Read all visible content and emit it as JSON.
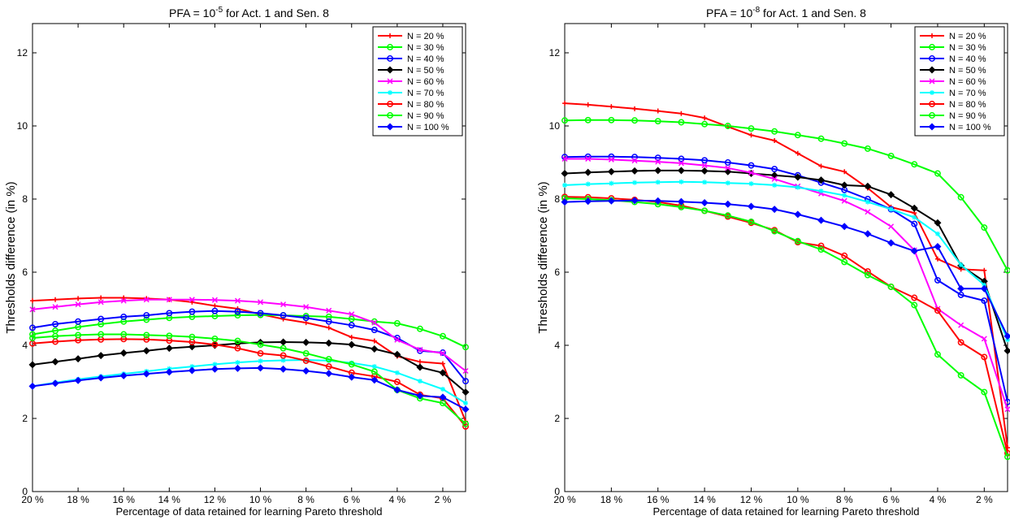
{
  "chart_data": [
    {
      "type": "line",
      "title_main": "PFA = 10",
      "title_exp": "-5",
      "title_rest": " for Act. 1 and Sen. 8",
      "xlabel": "Percentage of data retained for learning Pareto threshold",
      "ylabel": "Thresholds difference (in %)",
      "xlim": [
        20,
        1
      ],
      "ylim": [
        0,
        12.8
      ],
      "xticks": [
        "20 %",
        "18 %",
        "16 %",
        "14 %",
        "12 %",
        "10 %",
        "8 %",
        "6 %",
        "4 %",
        "2 %"
      ],
      "yticks": [
        "0",
        "2",
        "4",
        "6",
        "8",
        "10",
        "12"
      ],
      "grid": false,
      "legend_position": "top-right",
      "x": [
        20,
        19,
        18,
        17,
        16,
        15,
        14,
        13,
        12,
        11,
        10,
        9,
        8,
        7,
        6,
        5,
        4,
        3,
        2,
        1
      ],
      "series": [
        {
          "name": "N = 20 %",
          "color": "#ff0000",
          "marker": "plus",
          "values": [
            5.22,
            5.25,
            5.28,
            5.3,
            5.3,
            5.28,
            5.25,
            5.18,
            5.08,
            5.0,
            4.85,
            4.72,
            4.62,
            4.48,
            4.22,
            4.12,
            3.7,
            3.55,
            3.5,
            1.92
          ]
        },
        {
          "name": "N = 30 %",
          "color": "#00ff00",
          "marker": "circle",
          "values": [
            4.3,
            4.4,
            4.5,
            4.58,
            4.65,
            4.7,
            4.75,
            4.78,
            4.8,
            4.82,
            4.83,
            4.82,
            4.8,
            4.78,
            4.72,
            4.65,
            4.6,
            4.45,
            4.25,
            3.95
          ]
        },
        {
          "name": "N = 40 %",
          "color": "#0000ff",
          "marker": "circle",
          "values": [
            4.48,
            4.58,
            4.65,
            4.72,
            4.78,
            4.82,
            4.88,
            4.92,
            4.94,
            4.92,
            4.88,
            4.82,
            4.75,
            4.65,
            4.55,
            4.42,
            4.2,
            3.85,
            3.8,
            3.02
          ]
        },
        {
          "name": "N = 50 %",
          "color": "#000000",
          "marker": "diamond",
          "values": [
            3.47,
            3.55,
            3.63,
            3.72,
            3.79,
            3.85,
            3.92,
            3.96,
            4.0,
            4.05,
            4.08,
            4.09,
            4.08,
            4.06,
            4.02,
            3.9,
            3.75,
            3.4,
            3.25,
            2.72
          ]
        },
        {
          "name": "N = 60 %",
          "color": "#ff00ff",
          "marker": "x",
          "values": [
            4.98,
            5.05,
            5.12,
            5.18,
            5.22,
            5.25,
            5.25,
            5.25,
            5.24,
            5.22,
            5.18,
            5.12,
            5.05,
            4.95,
            4.85,
            4.62,
            4.15,
            3.88,
            3.78,
            3.3
          ]
        },
        {
          "name": "N = 70 %",
          "color": "#00ffff",
          "marker": "star",
          "values": [
            2.88,
            2.98,
            3.07,
            3.15,
            3.22,
            3.29,
            3.36,
            3.42,
            3.48,
            3.53,
            3.57,
            3.59,
            3.6,
            3.58,
            3.52,
            3.42,
            3.25,
            3.02,
            2.8,
            2.42
          ]
        },
        {
          "name": "N = 80 %",
          "color": "#ff0000",
          "marker": "circle",
          "values": [
            4.05,
            4.1,
            4.14,
            4.16,
            4.17,
            4.16,
            4.13,
            4.09,
            4.02,
            3.92,
            3.78,
            3.72,
            3.58,
            3.42,
            3.25,
            3.15,
            3.0,
            2.65,
            2.55,
            1.78
          ]
        },
        {
          "name": "N = 90 %",
          "color": "#00ff00",
          "marker": "circle",
          "values": [
            4.2,
            4.25,
            4.28,
            4.3,
            4.3,
            4.28,
            4.26,
            4.23,
            4.18,
            4.12,
            4.02,
            3.92,
            3.78,
            3.62,
            3.48,
            3.28,
            2.78,
            2.55,
            2.42,
            1.85
          ]
        },
        {
          "name": "N = 100 %",
          "color": "#0000ff",
          "marker": "diamond",
          "values": [
            2.88,
            2.96,
            3.04,
            3.11,
            3.17,
            3.22,
            3.27,
            3.31,
            3.35,
            3.37,
            3.38,
            3.35,
            3.3,
            3.23,
            3.13,
            3.05,
            2.78,
            2.62,
            2.58,
            2.25
          ]
        }
      ]
    },
    {
      "type": "line",
      "title_main": "PFA = 10",
      "title_exp": "-8",
      "title_rest": " for Act. 1 and Sen. 8",
      "xlabel": "Percentage of data retained for learning Pareto threshold",
      "ylabel": "Thresholds difference (in %)",
      "xlim": [
        20,
        1
      ],
      "ylim": [
        0,
        12.8
      ],
      "xticks": [
        "20 %",
        "18 %",
        "16 %",
        "14 %",
        "12 %",
        "10 %",
        "8 %",
        "6 %",
        "4 %",
        "2 %"
      ],
      "yticks": [
        "0",
        "2",
        "4",
        "6",
        "8",
        "10",
        "12"
      ],
      "grid": false,
      "legend_position": "top-right",
      "x": [
        20,
        19,
        18,
        17,
        16,
        15,
        14,
        13,
        12,
        11,
        10,
        9,
        8,
        7,
        6,
        5,
        4,
        3,
        2,
        1
      ],
      "series": [
        {
          "name": "N = 20 %",
          "color": "#ff0000",
          "marker": "plus",
          "values": [
            10.62,
            10.58,
            10.53,
            10.47,
            10.41,
            10.34,
            10.22,
            9.98,
            9.75,
            9.6,
            9.25,
            8.9,
            8.75,
            8.3,
            7.78,
            7.62,
            6.36,
            6.08,
            6.05,
            1.2
          ]
        },
        {
          "name": "N = 30 %",
          "color": "#00ff00",
          "marker": "circle",
          "values": [
            10.15,
            10.16,
            10.16,
            10.15,
            10.13,
            10.1,
            10.05,
            10.0,
            9.93,
            9.85,
            9.75,
            9.65,
            9.52,
            9.38,
            9.18,
            8.95,
            8.7,
            8.05,
            7.22,
            6.05
          ]
        },
        {
          "name": "N = 40 %",
          "color": "#0000ff",
          "marker": "circle",
          "values": [
            9.15,
            9.16,
            9.16,
            9.15,
            9.13,
            9.1,
            9.06,
            9.0,
            8.92,
            8.82,
            8.65,
            8.45,
            8.25,
            8.0,
            7.72,
            7.32,
            5.78,
            5.38,
            5.22,
            2.45
          ]
        },
        {
          "name": "N = 50 %",
          "color": "#000000",
          "marker": "diamond",
          "values": [
            8.7,
            8.73,
            8.75,
            8.77,
            8.78,
            8.78,
            8.77,
            8.75,
            8.7,
            8.65,
            8.6,
            8.52,
            8.38,
            8.35,
            8.12,
            7.75,
            7.35,
            6.18,
            5.75,
            3.85
          ]
        },
        {
          "name": "N = 60 %",
          "color": "#ff00ff",
          "marker": "x",
          "values": [
            9.1,
            9.1,
            9.08,
            9.05,
            9.02,
            8.98,
            8.92,
            8.85,
            8.72,
            8.55,
            8.35,
            8.15,
            7.95,
            7.65,
            7.25,
            6.6,
            5.0,
            4.55,
            4.18,
            2.25
          ]
        },
        {
          "name": "N = 70 %",
          "color": "#00ffff",
          "marker": "star",
          "values": [
            8.38,
            8.41,
            8.43,
            8.45,
            8.46,
            8.47,
            8.46,
            8.44,
            8.42,
            8.38,
            8.32,
            8.22,
            8.1,
            7.92,
            7.72,
            7.5,
            7.05,
            6.2,
            5.65,
            4.15
          ]
        },
        {
          "name": "N = 80 %",
          "color": "#ff0000",
          "marker": "circle",
          "values": [
            8.06,
            8.05,
            8.02,
            7.98,
            7.92,
            7.82,
            7.68,
            7.52,
            7.35,
            7.15,
            6.82,
            6.72,
            6.45,
            6.02,
            5.6,
            5.3,
            4.95,
            4.08,
            3.68,
            1.05
          ]
        },
        {
          "name": "N = 90 %",
          "color": "#00ff00",
          "marker": "circle",
          "values": [
            8.02,
            8.0,
            7.97,
            7.92,
            7.86,
            7.78,
            7.68,
            7.55,
            7.38,
            7.12,
            6.85,
            6.62,
            6.28,
            5.92,
            5.6,
            5.1,
            3.75,
            3.18,
            2.72,
            0.95
          ]
        },
        {
          "name": "N = 100 %",
          "color": "#0000ff",
          "marker": "diamond",
          "values": [
            7.92,
            7.94,
            7.95,
            7.96,
            7.95,
            7.93,
            7.9,
            7.86,
            7.8,
            7.72,
            7.58,
            7.42,
            7.25,
            7.05,
            6.8,
            6.58,
            6.7,
            5.55,
            5.55,
            4.25
          ]
        }
      ]
    }
  ]
}
